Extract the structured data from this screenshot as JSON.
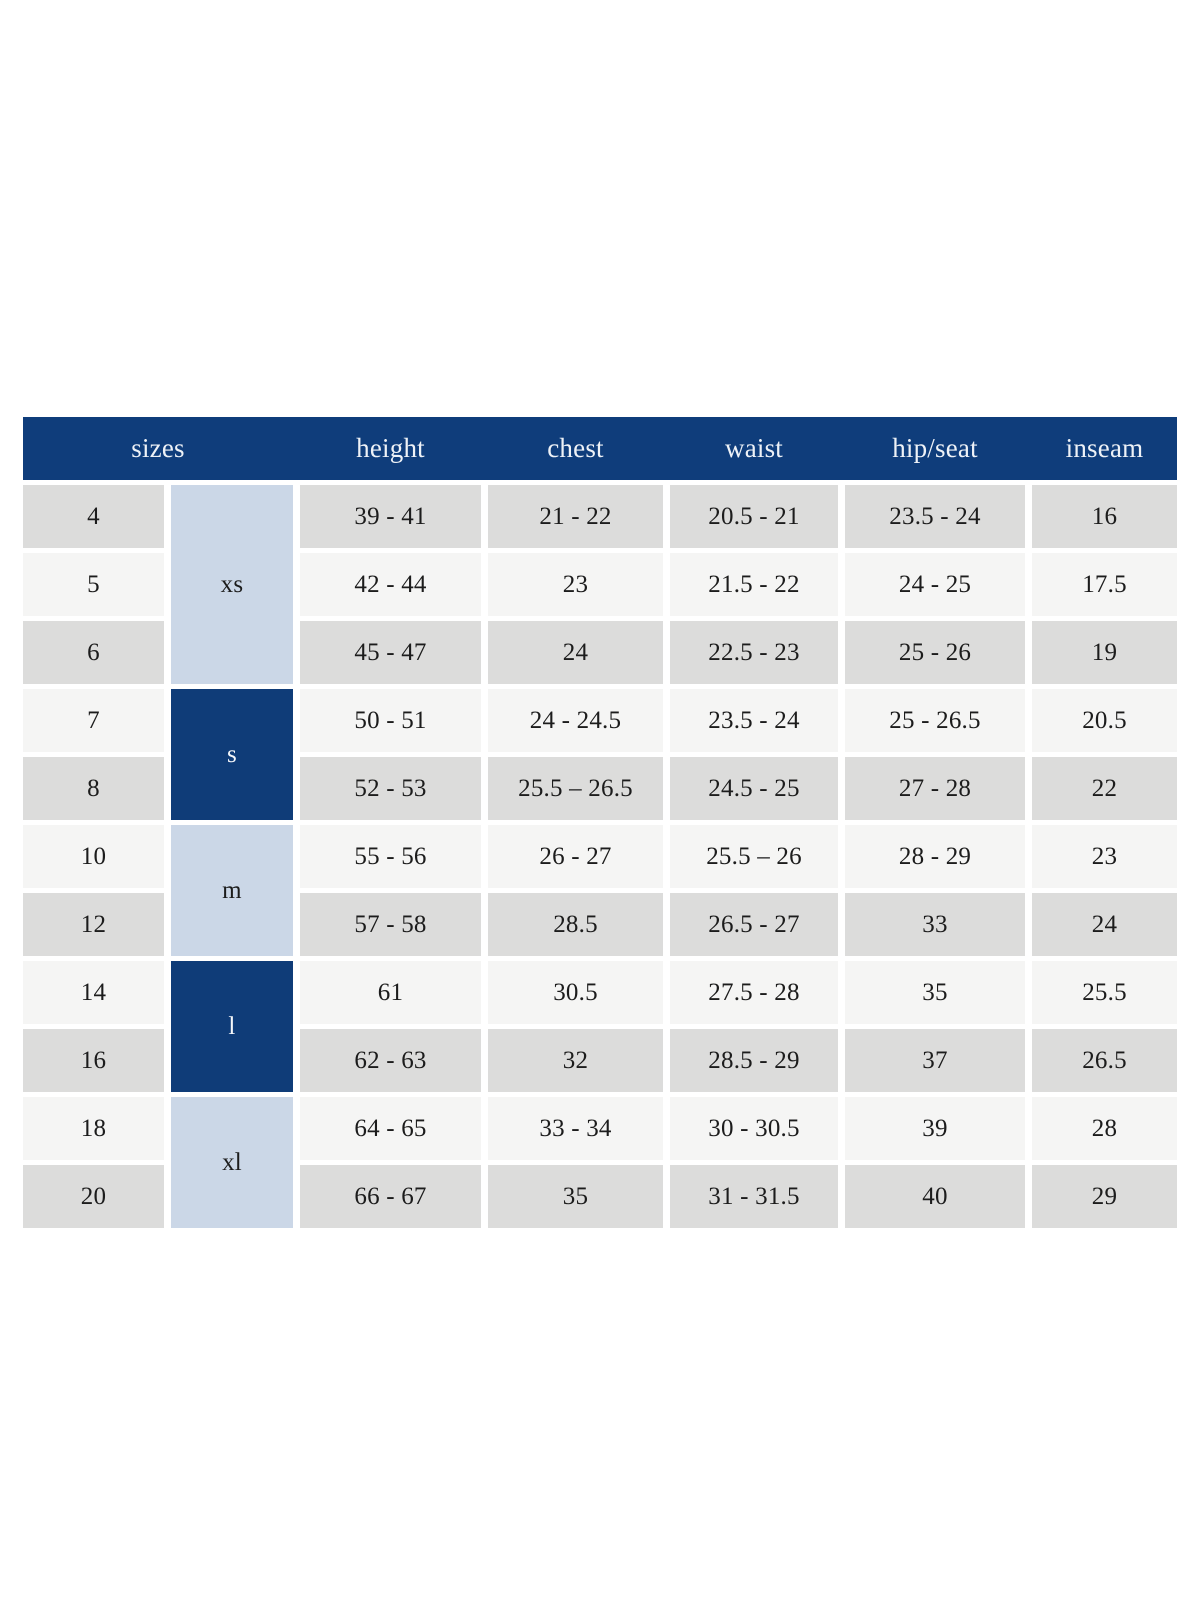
{
  "table": {
    "headers": [
      "sizes",
      "height",
      "chest",
      "waist",
      "hip/seat",
      "inseam"
    ],
    "colors": {
      "header_bg": "#0f3d7b",
      "group_light_bg": "#cbd7e7",
      "group_dark_bg": "#0f3c78",
      "row_gray": "#dcdcdb",
      "row_offwhite": "#f5f5f4",
      "header_text": "#eef2f7",
      "body_text": "#1c1c1c"
    },
    "size_groups": [
      {
        "label": "xs",
        "tone": "light",
        "spans_rows": 3
      },
      {
        "label": "s",
        "tone": "dark",
        "spans_rows": 2
      },
      {
        "label": "m",
        "tone": "light",
        "spans_rows": 2
      },
      {
        "label": "l",
        "tone": "dark",
        "spans_rows": 2
      },
      {
        "label": "xl",
        "tone": "light",
        "spans_rows": 2
      }
    ],
    "rows": [
      {
        "size": "4",
        "height": "39 - 41",
        "chest": "21 - 22",
        "waist": "20.5 - 21",
        "hip_seat": "23.5 - 24",
        "inseam": "16"
      },
      {
        "size": "5",
        "height": "42 - 44",
        "chest": "23",
        "waist": "21.5 - 22",
        "hip_seat": "24 - 25",
        "inseam": "17.5"
      },
      {
        "size": "6",
        "height": "45 - 47",
        "chest": "24",
        "waist": "22.5 - 23",
        "hip_seat": "25 - 26",
        "inseam": "19"
      },
      {
        "size": "7",
        "height": "50 - 51",
        "chest": "24 - 24.5",
        "waist": "23.5 - 24",
        "hip_seat": "25 - 26.5",
        "inseam": "20.5"
      },
      {
        "size": "8",
        "height": "52 - 53",
        "chest": "25.5 – 26.5",
        "waist": "24.5 - 25",
        "hip_seat": "27 - 28",
        "inseam": "22"
      },
      {
        "size": "10",
        "height": "55 - 56",
        "chest": "26 - 27",
        "waist": "25.5 – 26",
        "hip_seat": "28 - 29",
        "inseam": "23"
      },
      {
        "size": "12",
        "height": "57 - 58",
        "chest": "28.5",
        "waist": "26.5 - 27",
        "hip_seat": "33",
        "inseam": "24"
      },
      {
        "size": "14",
        "height": "61",
        "chest": "30.5",
        "waist": "27.5 - 28",
        "hip_seat": "35",
        "inseam": "25.5"
      },
      {
        "size": "16",
        "height": "62 - 63",
        "chest": "32",
        "waist": "28.5 - 29",
        "hip_seat": "37",
        "inseam": "26.5"
      },
      {
        "size": "18",
        "height": "64 - 65",
        "chest": "33 - 34",
        "waist": "30 - 30.5",
        "hip_seat": "39",
        "inseam": "28"
      },
      {
        "size": "20",
        "height": "66 - 67",
        "chest": "35",
        "waist": "31 - 31.5",
        "hip_seat": "40",
        "inseam": "29"
      }
    ]
  }
}
